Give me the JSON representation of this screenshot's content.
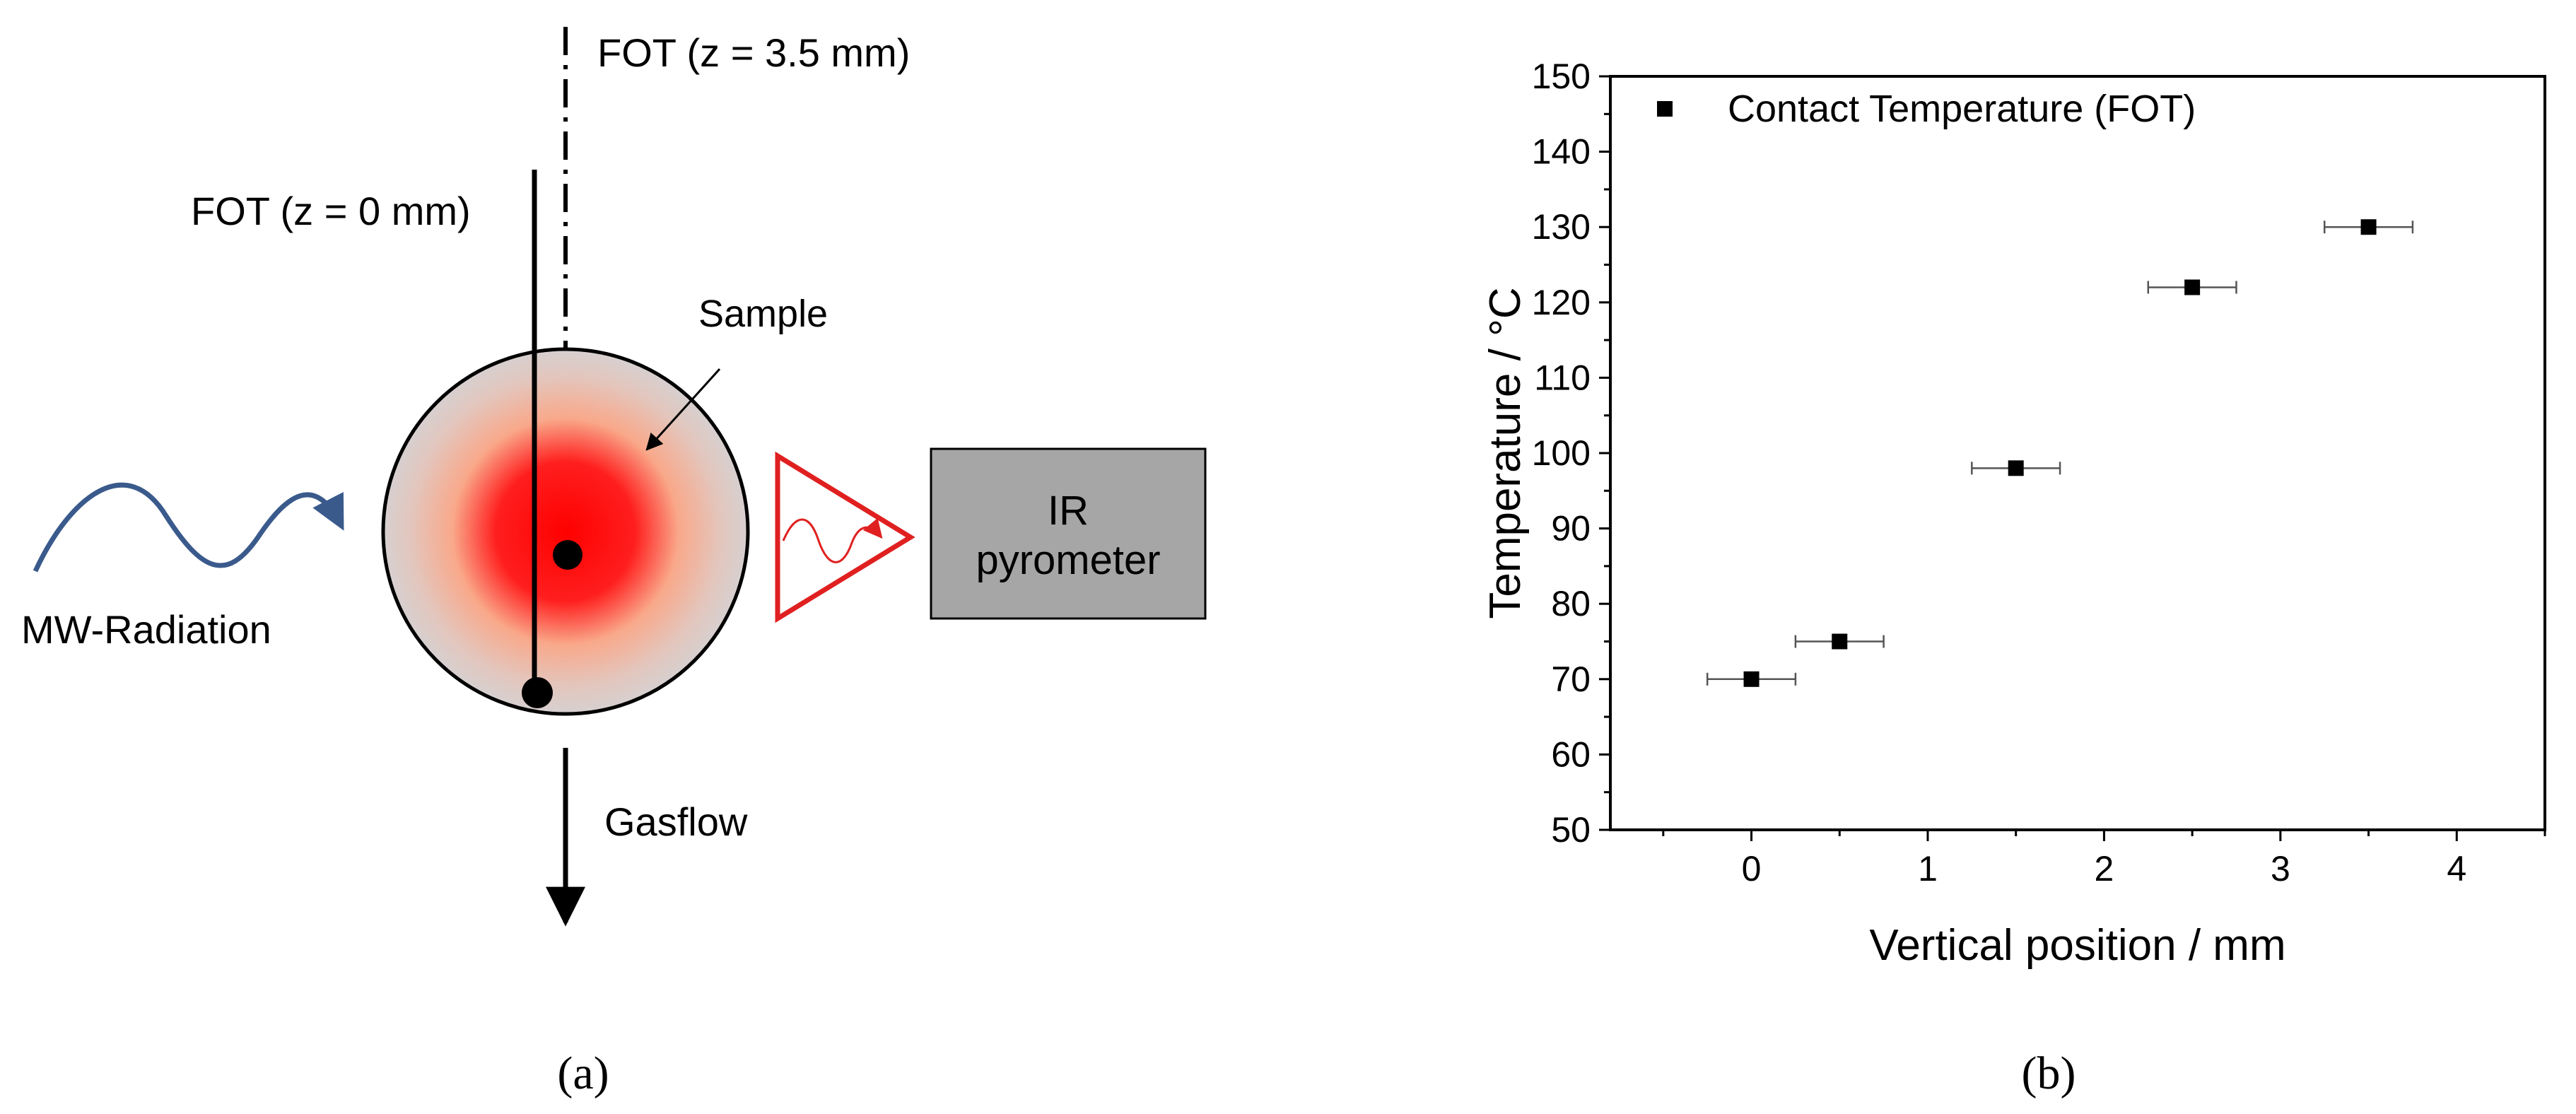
{
  "panel_a": {
    "fot_top_label": "FOT (z = 3.5 mm)",
    "fot_left_label": "FOT (z = 0 mm)",
    "sample_label": "Sample",
    "mw_label": "MW-Radiation",
    "pyrometer_line1": "IR",
    "pyrometer_line2": "pyrometer",
    "gasflow_label": "Gasflow",
    "caption": "(a)",
    "colors": {
      "hot": "#ff0000",
      "mw_wave": "#3a5a8c",
      "pyrometer_box": "#a6a6a6",
      "triangle": "#e02020"
    }
  },
  "panel_b": {
    "caption": "(b)"
  },
  "chart_data": {
    "type": "scatter",
    "xlabel": "Vertical position / mm",
    "ylabel": "Temperature / °C",
    "xlim": [
      -0.8,
      4.5
    ],
    "ylim": [
      50,
      150
    ],
    "xticks": [
      0,
      1,
      2,
      3,
      4
    ],
    "yticks": [
      50,
      60,
      70,
      80,
      90,
      100,
      110,
      120,
      130,
      140,
      150
    ],
    "grid": false,
    "legend_position": "top-left",
    "series": [
      {
        "name": "Contact Temperature (FOT)",
        "marker": "square",
        "color": "#000000",
        "x": [
          0,
          0.5,
          1.5,
          2.5,
          3.5
        ],
        "y": [
          70,
          75,
          98,
          122,
          130
        ],
        "x_error": [
          0.25,
          0.25,
          0.25,
          0.25,
          0.25
        ]
      }
    ]
  }
}
